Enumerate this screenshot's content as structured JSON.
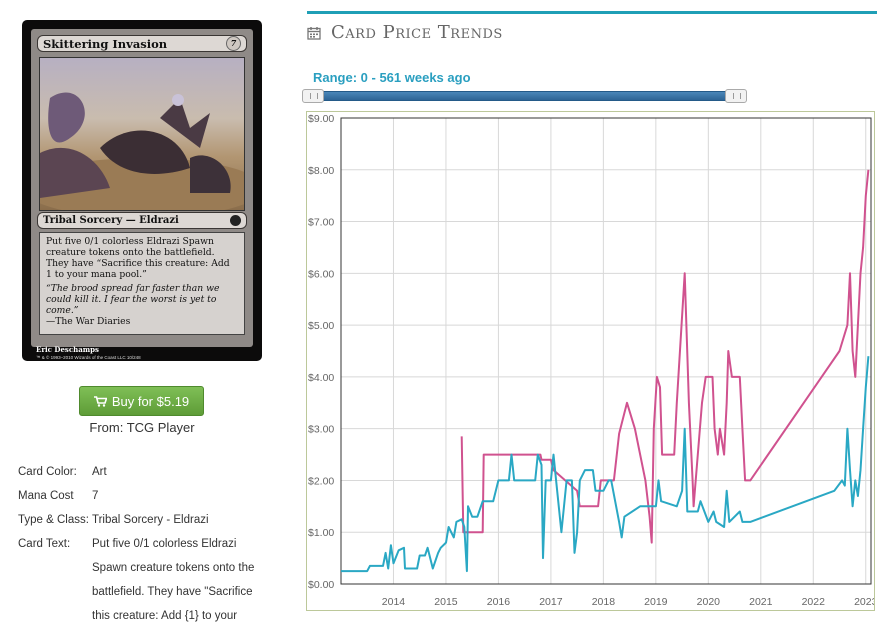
{
  "card": {
    "name": "Skittering Invasion",
    "mana_symbol": "7",
    "type_line": "Tribal Sorcery — Eldrazi",
    "rules_text": "Put five 0/1 colorless Eldrazi Spawn creature tokens onto the battlefield. They have “Sacrifice this creature: Add 1 to your mana pool.”",
    "flavor_text": "“The brood spread far faster than we could kill it. I fear the worst is yet to come.”",
    "flavor_attribution": "—The War Diaries",
    "artist": "Eric Deschamps",
    "legal": "™ & © 1993–2010 Wizards of the Coast LLC 10/248"
  },
  "buy": {
    "label": "Buy for $5.19",
    "from": "From: TCG Player",
    "icon": "cart-icon",
    "color": "#6aaa44"
  },
  "details": [
    {
      "key": "Card Color:",
      "value": "Art"
    },
    {
      "key": "Mana Cost",
      "value": "7"
    },
    {
      "key": "Type & Class:",
      "value": "Tribal Sorcery - Eldrazi"
    },
    {
      "key": "Card Text:",
      "value": "Put five 0/1 colorless Eldrazi Spawn creature tokens onto the battlefield. They have \"Sacrifice this creature: Add {1} to your"
    }
  ],
  "trends": {
    "title": "Card Price Trends",
    "icon": "calendar-icon",
    "range_label": "Range: 0 - 561 weeks ago",
    "accent": "#1f9fb6"
  },
  "chart_data": {
    "type": "line",
    "title": "",
    "xlabel": "",
    "ylabel": "",
    "xlim": [
      2013.0,
      2023.1
    ],
    "ylim": [
      0,
      9
    ],
    "y_ticks": [
      "$0.00",
      "$1.00",
      "$2.00",
      "$3.00",
      "$4.00",
      "$5.00",
      "$6.00",
      "$7.00",
      "$8.00",
      "$9.00"
    ],
    "x_ticks": [
      "2014",
      "2015",
      "2016",
      "2017",
      "2018",
      "2019",
      "2020",
      "2021",
      "2022",
      "2023"
    ],
    "grid": true,
    "series": [
      {
        "color": "#d0528f",
        "points": [
          [
            2015.3,
            2.85
          ],
          [
            2015.33,
            1.0
          ],
          [
            2015.7,
            1.0
          ],
          [
            2015.72,
            2.5
          ],
          [
            2016.8,
            2.5
          ],
          [
            2016.82,
            2.4
          ],
          [
            2017.0,
            2.4
          ],
          [
            2017.05,
            2.2
          ],
          [
            2017.5,
            1.8
          ],
          [
            2017.55,
            1.5
          ],
          [
            2017.9,
            1.5
          ],
          [
            2017.95,
            2.0
          ],
          [
            2018.2,
            2.0
          ],
          [
            2018.3,
            2.9
          ],
          [
            2018.45,
            3.5
          ],
          [
            2018.6,
            3.0
          ],
          [
            2018.8,
            2.0
          ],
          [
            2018.88,
            1.3
          ],
          [
            2018.92,
            0.8
          ],
          [
            2018.96,
            3.0
          ],
          [
            2019.02,
            4.0
          ],
          [
            2019.08,
            3.8
          ],
          [
            2019.12,
            2.5
          ],
          [
            2019.35,
            2.5
          ],
          [
            2019.4,
            3.5
          ],
          [
            2019.55,
            6.0
          ],
          [
            2019.63,
            3.5
          ],
          [
            2019.7,
            2.0
          ],
          [
            2019.72,
            1.5
          ],
          [
            2019.8,
            2.5
          ],
          [
            2019.88,
            3.5
          ],
          [
            2019.95,
            4.0
          ],
          [
            2020.08,
            4.0
          ],
          [
            2020.12,
            3.0
          ],
          [
            2020.18,
            2.5
          ],
          [
            2020.22,
            3.0
          ],
          [
            2020.3,
            2.5
          ],
          [
            2020.35,
            3.5
          ],
          [
            2020.38,
            4.5
          ],
          [
            2020.45,
            4.0
          ],
          [
            2020.6,
            4.0
          ],
          [
            2020.65,
            3.0
          ],
          [
            2020.7,
            2.0
          ],
          [
            2020.8,
            2.0
          ],
          [
            2022.5,
            4.5
          ],
          [
            2022.65,
            5.0
          ],
          [
            2022.7,
            6.0
          ],
          [
            2022.75,
            4.5
          ],
          [
            2022.8,
            4.0
          ],
          [
            2022.85,
            5.0
          ],
          [
            2022.9,
            6.0
          ],
          [
            2022.95,
            6.5
          ],
          [
            2023.0,
            7.5
          ],
          [
            2023.05,
            8.0
          ]
        ]
      },
      {
        "color": "#2aa8c4",
        "points": [
          [
            2013.0,
            0.25
          ],
          [
            2013.5,
            0.25
          ],
          [
            2013.55,
            0.35
          ],
          [
            2013.8,
            0.35
          ],
          [
            2013.85,
            0.6
          ],
          [
            2013.9,
            0.3
          ],
          [
            2013.95,
            0.75
          ],
          [
            2014.0,
            0.4
          ],
          [
            2014.1,
            0.65
          ],
          [
            2014.2,
            0.7
          ],
          [
            2014.22,
            0.3
          ],
          [
            2014.45,
            0.3
          ],
          [
            2014.5,
            0.55
          ],
          [
            2014.6,
            0.55
          ],
          [
            2014.65,
            0.7
          ],
          [
            2014.75,
            0.3
          ],
          [
            2014.85,
            0.6
          ],
          [
            2014.9,
            0.7
          ],
          [
            2015.0,
            0.8
          ],
          [
            2015.05,
            1.1
          ],
          [
            2015.15,
            0.9
          ],
          [
            2015.2,
            1.2
          ],
          [
            2015.3,
            1.25
          ],
          [
            2015.35,
            1.1
          ],
          [
            2015.4,
            0.25
          ],
          [
            2015.42,
            1.5
          ],
          [
            2015.5,
            1.3
          ],
          [
            2015.6,
            1.3
          ],
          [
            2015.7,
            1.6
          ],
          [
            2015.9,
            1.6
          ],
          [
            2016.0,
            2.0
          ],
          [
            2016.2,
            2.0
          ],
          [
            2016.25,
            2.5
          ],
          [
            2016.3,
            2.0
          ],
          [
            2016.7,
            2.0
          ],
          [
            2016.75,
            2.5
          ],
          [
            2016.82,
            2.3
          ],
          [
            2016.85,
            0.5
          ],
          [
            2016.9,
            2.0
          ],
          [
            2017.0,
            2.0
          ],
          [
            2017.05,
            2.5
          ],
          [
            2017.1,
            2.0
          ],
          [
            2017.2,
            1.0
          ],
          [
            2017.3,
            2.0
          ],
          [
            2017.4,
            2.0
          ],
          [
            2017.45,
            0.6
          ],
          [
            2017.5,
            1.0
          ],
          [
            2017.55,
            2.0
          ],
          [
            2017.65,
            2.2
          ],
          [
            2017.8,
            2.2
          ],
          [
            2017.85,
            1.8
          ],
          [
            2018.0,
            1.8
          ],
          [
            2018.1,
            2.0
          ],
          [
            2018.15,
            2.0
          ],
          [
            2018.3,
            1.2
          ],
          [
            2018.35,
            0.9
          ],
          [
            2018.4,
            1.3
          ],
          [
            2018.7,
            1.5
          ],
          [
            2018.9,
            1.5
          ],
          [
            2019.0,
            1.5
          ],
          [
            2019.05,
            2.0
          ],
          [
            2019.1,
            1.6
          ],
          [
            2019.4,
            1.5
          ],
          [
            2019.5,
            1.8
          ],
          [
            2019.55,
            3.0
          ],
          [
            2019.6,
            1.4
          ],
          [
            2019.8,
            1.4
          ],
          [
            2019.85,
            1.6
          ],
          [
            2020.0,
            1.2
          ],
          [
            2020.1,
            1.4
          ],
          [
            2020.15,
            1.2
          ],
          [
            2020.3,
            1.1
          ],
          [
            2020.35,
            1.8
          ],
          [
            2020.4,
            1.2
          ],
          [
            2020.6,
            1.4
          ],
          [
            2020.65,
            1.2
          ],
          [
            2020.8,
            1.2
          ],
          [
            2022.4,
            1.8
          ],
          [
            2022.55,
            2.0
          ],
          [
            2022.6,
            1.9
          ],
          [
            2022.65,
            3.0
          ],
          [
            2022.7,
            2.2
          ],
          [
            2022.75,
            1.5
          ],
          [
            2022.8,
            2.0
          ],
          [
            2022.85,
            1.7
          ],
          [
            2022.9,
            2.2
          ],
          [
            2022.95,
            3.0
          ],
          [
            2023.0,
            3.8
          ],
          [
            2023.05,
            4.4
          ]
        ]
      }
    ]
  }
}
